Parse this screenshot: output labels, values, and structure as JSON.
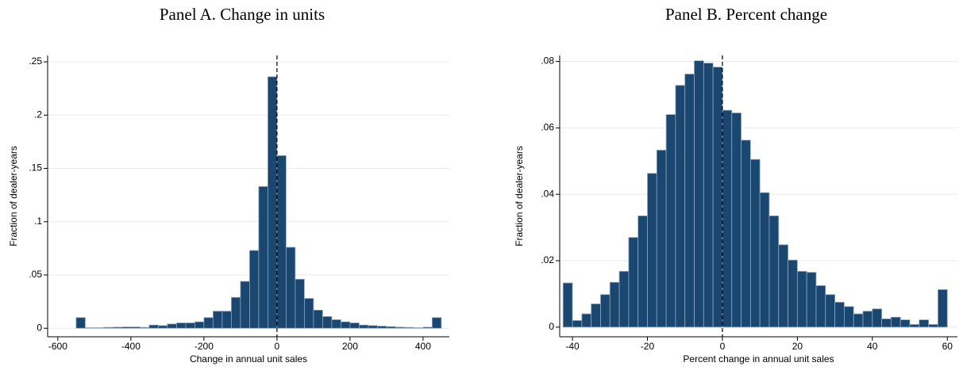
{
  "chart_data": [
    {
      "type": "histogram",
      "title": "Panel A. Change in units",
      "xlabel": "Change in annual unit sales",
      "ylabel": "Fraction of dealer-years",
      "bins": [
        -550,
        -525,
        -500,
        -475,
        -450,
        -425,
        -400,
        -375,
        -350,
        -325,
        -300,
        -275,
        -250,
        -225,
        -200,
        -175,
        -150,
        -125,
        -100,
        -75,
        -50,
        -25,
        0,
        25,
        50,
        75,
        100,
        125,
        150,
        175,
        200,
        225,
        250,
        275,
        300,
        325,
        350,
        375,
        400,
        425,
        450
      ],
      "values": [
        0.01,
        0.0005,
        0.0005,
        0.0008,
        0.001,
        0.0012,
        0.0012,
        0.0008,
        0.003,
        0.0025,
        0.004,
        0.005,
        0.005,
        0.006,
        0.01,
        0.016,
        0.016,
        0.029,
        0.044,
        0.073,
        0.133,
        0.236,
        0.162,
        0.076,
        0.046,
        0.028,
        0.017,
        0.011,
        0.008,
        0.006,
        0.005,
        0.003,
        0.0025,
        0.002,
        0.0015,
        0.001,
        0.0008,
        0.0005,
        0.001,
        0.01
      ],
      "color": "#1a476f",
      "vline": 0,
      "grid": true,
      "xlim": [
        -628,
        472
      ],
      "xticks": [
        -600,
        -400,
        -200,
        0,
        200,
        400
      ],
      "ylim": [
        -0.008,
        0.256
      ],
      "yticks": [
        0,
        {
          "value": 0.05,
          "label": ".05"
        },
        {
          "value": 0.1,
          "label": ".1"
        },
        {
          "value": 0.15,
          "label": ".15"
        },
        {
          "value": 0.2,
          "label": ".2"
        },
        {
          "value": 0.25,
          "label": ".25"
        }
      ]
    },
    {
      "type": "histogram",
      "title": "Panel B. Percent change",
      "xlabel": "Percent change in annual unit sales",
      "ylabel": "Fraction of dealer-years",
      "bins": [
        -42.5,
        -40,
        -37.5,
        -35,
        -32.5,
        -30,
        -27.5,
        -25,
        -22.5,
        -20,
        -17.5,
        -15,
        -12.5,
        -10,
        -7.5,
        -5,
        -2.5,
        0,
        2.5,
        5,
        7.5,
        10,
        12.5,
        15,
        17.5,
        20,
        22.5,
        25,
        27.5,
        30,
        32.5,
        35,
        37.5,
        40,
        42.5,
        45,
        47.5,
        50,
        52.5,
        55,
        57.5,
        60
      ],
      "values": [
        0.0133,
        0.002,
        0.004,
        0.007,
        0.0098,
        0.0135,
        0.0168,
        0.027,
        0.0335,
        0.0463,
        0.0533,
        0.064,
        0.0728,
        0.0762,
        0.0802,
        0.0795,
        0.0783,
        0.0653,
        0.0645,
        0.0563,
        0.0505,
        0.0405,
        0.0335,
        0.0248,
        0.0202,
        0.0168,
        0.0165,
        0.0125,
        0.0098,
        0.0075,
        0.0062,
        0.004,
        0.0048,
        0.0055,
        0.0025,
        0.003,
        0.0022,
        0.0008,
        0.0022,
        0.0008,
        0.0113
      ],
      "color": "#1a476f",
      "vline": 0,
      "grid": true,
      "xlim": [
        -43.4,
        62.7
      ],
      "xticks": [
        -40,
        -20,
        0,
        20,
        40,
        60
      ],
      "ylim": [
        -0.0029,
        0.0818
      ],
      "yticks": [
        0,
        {
          "value": 0.02,
          "label": ".02"
        },
        {
          "value": 0.04,
          "label": ".04"
        },
        {
          "value": 0.06,
          "label": ".06"
        },
        {
          "value": 0.08,
          "label": ".08"
        }
      ]
    }
  ]
}
